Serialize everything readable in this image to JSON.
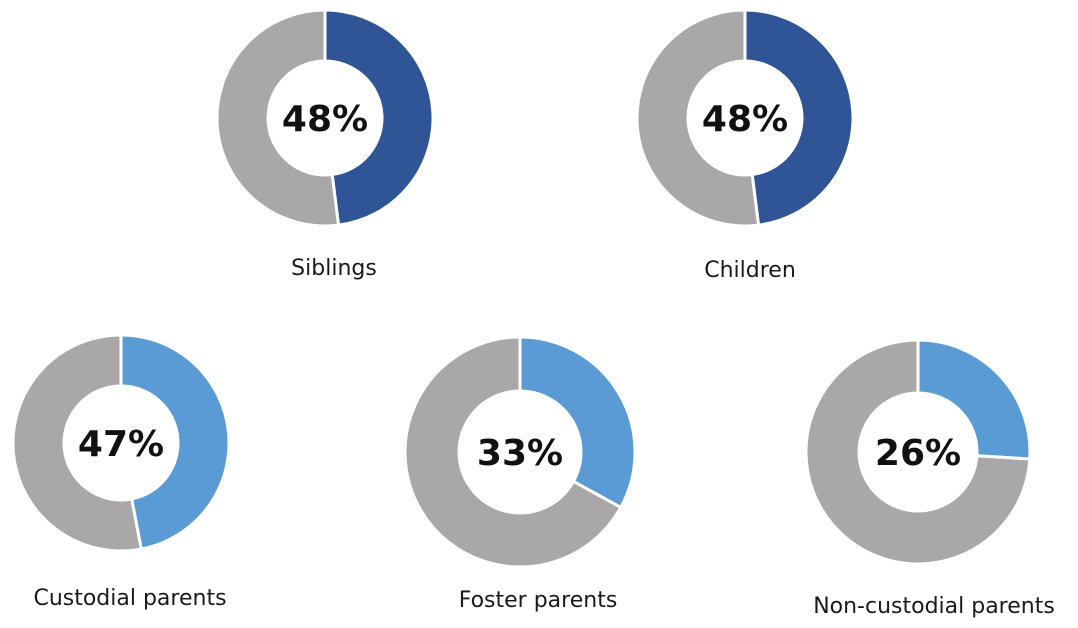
{
  "chart_data": [
    {
      "type": "pie",
      "style": "donut",
      "label": "Siblings",
      "value_label": "48%",
      "slices": [
        {
          "value": 48,
          "color": "#2f5597"
        },
        {
          "value": 52,
          "color": "#a9a7a8"
        }
      ]
    },
    {
      "type": "pie",
      "style": "donut",
      "label": "Children",
      "value_label": "48%",
      "slices": [
        {
          "value": 48,
          "color": "#2f5597"
        },
        {
          "value": 52,
          "color": "#a9a7a8"
        }
      ]
    },
    {
      "type": "pie",
      "style": "donut",
      "label": "Custodial parents",
      "value_label": "47%",
      "slices": [
        {
          "value": 47,
          "color": "#5b9bd5"
        },
        {
          "value": 53,
          "color": "#a9a7a8"
        }
      ]
    },
    {
      "type": "pie",
      "style": "donut",
      "label": "Foster parents",
      "value_label": "33%",
      "slices": [
        {
          "value": 33,
          "color": "#5b9bd5"
        },
        {
          "value": 67,
          "color": "#a9a7a8"
        }
      ]
    },
    {
      "type": "pie",
      "style": "donut",
      "label": "Non-custodial parents",
      "value_label": "26%",
      "slices": [
        {
          "value": 26,
          "color": "#5b9bd5"
        },
        {
          "value": 74,
          "color": "#a9a7a8"
        }
      ]
    }
  ]
}
